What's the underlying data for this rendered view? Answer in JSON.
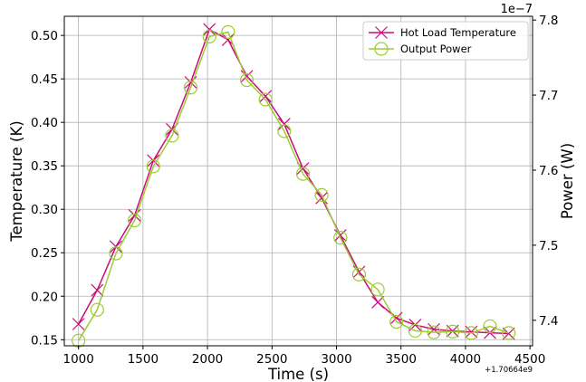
{
  "chart_data": {
    "type": "line",
    "xlabel": "Time (s)",
    "ylabel": "Temperature (K)",
    "y2label": "Power (W)",
    "x_offset_text": "+1.70664e9",
    "y2_scale_text": "1e−7",
    "xlim": [
      890,
      4520
    ],
    "ylim": [
      0.143,
      0.522
    ],
    "y2lim": [
      7.366,
      7.805
    ],
    "x_ticks": [
      1000,
      1500,
      2000,
      2500,
      3000,
      3500,
      4000,
      4500
    ],
    "x_tick_labels": [
      "1000",
      "1500",
      "2000",
      "2500",
      "3000",
      "3500",
      "4000",
      "4500"
    ],
    "y_ticks": [
      0.15,
      0.2,
      0.25,
      0.3,
      0.35,
      0.4,
      0.45,
      0.5
    ],
    "y_tick_labels": [
      "0.15",
      "0.20",
      "0.25",
      "0.30",
      "0.35",
      "0.40",
      "0.45",
      "0.50"
    ],
    "y2_ticks": [
      7.4,
      7.5,
      7.6,
      7.7,
      7.8
    ],
    "y2_tick_labels": [
      "7.4",
      "7.5",
      "7.6",
      "7.7",
      "7.8"
    ],
    "grid": true,
    "legend_position": "top-right",
    "series": [
      {
        "name": "Hot Load Temperature",
        "axis": "left",
        "color": "#cc0a7a",
        "marker": "x",
        "x": [
          1000,
          1145,
          1290,
          1435,
          1580,
          1725,
          1870,
          2015,
          2160,
          2305,
          2450,
          2595,
          2740,
          2885,
          3030,
          3175,
          3320,
          3465,
          3610,
          3755,
          3900,
          4045,
          4190,
          4335
        ],
        "y": [
          0.168,
          0.207,
          0.257,
          0.293,
          0.356,
          0.392,
          0.446,
          0.507,
          0.495,
          0.453,
          0.43,
          0.398,
          0.347,
          0.313,
          0.27,
          0.228,
          0.193,
          0.175,
          0.167,
          0.162,
          0.16,
          0.159,
          0.158,
          0.157
        ]
      },
      {
        "name": "Output Power",
        "axis": "right",
        "color": "#9acd32",
        "marker": "o",
        "x": [
          1000,
          1145,
          1290,
          1435,
          1580,
          1725,
          1870,
          2015,
          2160,
          2305,
          2450,
          2595,
          2740,
          2885,
          3030,
          3175,
          3320,
          3465,
          3610,
          3755,
          3900,
          4045,
          4190,
          4335
        ],
        "y": [
          7.373,
          7.414,
          7.489,
          7.533,
          7.605,
          7.646,
          7.71,
          7.778,
          7.784,
          7.72,
          7.694,
          7.652,
          7.595,
          7.567,
          7.51,
          7.461,
          7.441,
          7.398,
          7.386,
          7.384,
          7.385,
          7.383,
          7.392,
          7.383
        ]
      }
    ]
  }
}
